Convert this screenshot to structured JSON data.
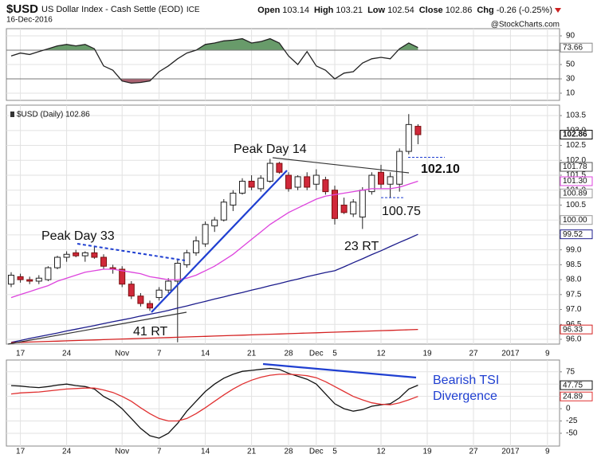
{
  "header": {
    "symbol": "$USD",
    "name": "US Dollar Index - Cash Settle (EOD)",
    "exchange": "ICE",
    "date": "16-Dec-2016",
    "quote": [
      {
        "name": "Open",
        "value": 103.14
      },
      {
        "name": "High",
        "value": 103.21
      },
      {
        "name": "Low",
        "value": 102.54
      },
      {
        "name": "Close",
        "value": 102.86
      },
      {
        "name": "Chg",
        "value": -0.26
      }
    ],
    "change_percent": {
      "value": -0.25,
      "label": "(-0.25%)"
    },
    "change_color": "#cc2222",
    "watermark": "@StockCharts.com"
  },
  "chart_data": [
    {
      "type": "line",
      "ylim": [
        0,
        100
      ],
      "yticks": [
        10,
        30,
        50,
        70,
        90
      ],
      "grid": true,
      "overbought": 70,
      "oversold": 30,
      "overbought_color": "#4e8a50",
      "oversold_color": "#9a4658",
      "series": [
        {
          "color": "#222222",
          "values": [
            62,
            66,
            64,
            68,
            72,
            76,
            78,
            76,
            78,
            72,
            48,
            42,
            27,
            24,
            25,
            27,
            40,
            48,
            58,
            66,
            70,
            78,
            80,
            83,
            84,
            86,
            80,
            82,
            86,
            80,
            62,
            50,
            68,
            48,
            42,
            30,
            38,
            40,
            52,
            58,
            60,
            58,
            72,
            80,
            73.66,
            null,
            null,
            null,
            null,
            null,
            null,
            null,
            null,
            null,
            null,
            null,
            null,
            null,
            null,
            null
          ]
        }
      ],
      "tags": [
        {
          "value": 73.66,
          "color": "#888888"
        }
      ]
    },
    {
      "type": "candlestick",
      "title": "$USD (Daily) 102.86",
      "categories": [
        null,
        "17",
        null,
        null,
        null,
        null,
        "24",
        null,
        null,
        null,
        null,
        null,
        "Nov",
        null,
        null,
        null,
        "7",
        null,
        null,
        null,
        null,
        "14",
        null,
        null,
        null,
        null,
        "21",
        null,
        null,
        null,
        "28",
        null,
        null,
        "Dec",
        null,
        "5",
        null,
        null,
        null,
        null,
        "12",
        null,
        null,
        null,
        null,
        "19",
        null,
        null,
        null,
        null,
        "27",
        null,
        null,
        null,
        "2017",
        null,
        null,
        null,
        "9",
        null
      ],
      "open": [
        97.85,
        98.1,
        98.0,
        97.95,
        98.0,
        98.4,
        98.75,
        98.9,
        98.8,
        98.9,
        98.75,
        98.4,
        98.35,
        97.85,
        97.45,
        97.2,
        97.4,
        97.65,
        97.95,
        98.5,
        98.9,
        99.2,
        99.8,
        100.0,
        100.5,
        100.9,
        101.3,
        101.05,
        101.3,
        101.9,
        101.5,
        101.1,
        101.45,
        101.2,
        101.35,
        101.0,
        100.5,
        100.2,
        100.1,
        100.95,
        101.6,
        101.2,
        101.2,
        102.3,
        103.14,
        null,
        null,
        null,
        null,
        null,
        null,
        null,
        null,
        null,
        null,
        null,
        null,
        null,
        null,
        null
      ],
      "high": [
        98.25,
        98.2,
        98.1,
        98.15,
        98.45,
        98.8,
        98.95,
        99.0,
        98.95,
        99.1,
        98.85,
        98.5,
        98.45,
        97.95,
        97.55,
        97.3,
        97.75,
        98.05,
        98.7,
        99.0,
        99.45,
        99.95,
        100.1,
        100.7,
        101.0,
        101.4,
        101.5,
        101.5,
        102.05,
        101.95,
        101.6,
        101.5,
        101.6,
        101.7,
        101.45,
        101.15,
        100.75,
        100.7,
        101.1,
        101.6,
        101.85,
        101.6,
        102.4,
        103.55,
        103.21,
        null,
        null,
        null,
        null,
        null,
        null,
        null,
        null,
        null,
        null,
        null,
        null,
        null,
        null,
        null
      ],
      "low": [
        97.75,
        97.9,
        97.85,
        97.85,
        97.95,
        98.35,
        98.6,
        98.75,
        98.6,
        98.7,
        98.35,
        98.2,
        97.75,
        97.35,
        97.1,
        96.95,
        97.3,
        97.55,
        95.9,
        98.4,
        98.8,
        99.1,
        99.6,
        99.95,
        100.3,
        100.85,
        101.0,
        100.95,
        101.25,
        101.55,
        100.95,
        101.0,
        101.0,
        101.0,
        100.85,
        99.85,
        100.2,
        100.1,
        99.7,
        100.85,
        101.05,
        100.75,
        100.95,
        102.2,
        102.54,
        null,
        null,
        null,
        null,
        null,
        null,
        null,
        null,
        null,
        null,
        null,
        null,
        null,
        null,
        null
      ],
      "close": [
        98.15,
        98.0,
        97.95,
        98.05,
        98.4,
        98.75,
        98.85,
        98.8,
        98.9,
        98.75,
        98.45,
        98.35,
        97.85,
        97.45,
        97.2,
        97.05,
        97.65,
        97.95,
        98.55,
        98.9,
        99.3,
        99.85,
        100.0,
        100.6,
        100.9,
        101.3,
        101.1,
        101.4,
        101.9,
        101.6,
        101.05,
        101.45,
        101.1,
        101.5,
        100.95,
        100.05,
        100.25,
        100.6,
        101.0,
        101.5,
        101.2,
        101.45,
        102.3,
        103.2,
        102.86,
        null,
        null,
        null,
        null,
        null,
        null,
        null,
        null,
        null,
        null,
        null,
        null,
        null,
        null,
        null
      ],
      "up_color": "#ffffff",
      "down_color": "#d0283a",
      "series": [
        {
          "color": "#dd44dd",
          "values": [
            97.4,
            97.5,
            97.6,
            97.7,
            97.8,
            97.95,
            98.05,
            98.15,
            98.25,
            98.3,
            98.35,
            98.35,
            98.3,
            98.25,
            98.2,
            98.1,
            98.05,
            98.0,
            98.0,
            98.05,
            98.15,
            98.3,
            98.45,
            98.65,
            98.85,
            99.1,
            99.35,
            99.6,
            99.85,
            100.05,
            100.25,
            100.4,
            100.55,
            100.7,
            100.8,
            100.85,
            100.9,
            100.95,
            101.0,
            101.05,
            101.05,
            101.05,
            101.1,
            101.2,
            101.3,
            null,
            null,
            null,
            null,
            null,
            null,
            null,
            null,
            null,
            null,
            null,
            null,
            null,
            null,
            null
          ]
        },
        {
          "color": "#1c1c8c",
          "values": [
            95.9,
            95.96,
            96.03,
            96.09,
            96.15,
            96.21,
            96.28,
            96.34,
            96.4,
            96.46,
            96.53,
            96.59,
            96.65,
            96.71,
            96.78,
            96.84,
            96.9,
            96.97,
            97.05,
            97.12,
            97.2,
            97.27,
            97.35,
            97.42,
            97.5,
            97.57,
            97.65,
            97.72,
            97.8,
            97.87,
            97.95,
            98.02,
            98.1,
            98.17,
            98.24,
            98.3,
            98.43,
            98.57,
            98.7,
            98.84,
            98.97,
            99.11,
            99.25,
            99.38,
            99.52,
            null,
            null,
            null,
            null,
            null,
            null,
            null,
            null,
            null,
            null,
            null,
            null,
            null,
            null,
            null
          ]
        },
        {
          "color": "#d42020",
          "values": [
            95.89,
            95.9,
            95.91,
            95.92,
            95.93,
            95.94,
            95.95,
            95.96,
            95.97,
            95.98,
            95.99,
            96,
            96.01,
            96.02,
            96.03,
            96.04,
            96.05,
            96.06,
            96.07,
            96.08,
            96.09,
            96.1,
            96.11,
            96.12,
            96.13,
            96.14,
            96.15,
            96.16,
            96.17,
            96.18,
            96.19,
            96.2,
            96.21,
            96.22,
            96.23,
            96.24,
            96.25,
            96.26,
            96.27,
            96.28,
            96.29,
            96.3,
            96.31,
            96.32,
            96.33,
            null,
            null,
            null,
            null,
            null,
            null,
            null,
            null,
            null,
            null,
            null,
            null,
            null,
            null,
            null
          ]
        }
      ],
      "ylim": [
        95.84,
        103.85
      ],
      "yticks": [
        {
          "value": 96,
          "label": "96.0"
        },
        {
          "value": 96.5,
          "label": "96.5"
        },
        {
          "value": 97,
          "label": "97.0"
        },
        {
          "value": 97.5,
          "label": "97.5"
        },
        {
          "value": 98,
          "label": "98.0"
        },
        {
          "value": 98.5,
          "label": "98.5"
        },
        {
          "value": 99,
          "label": "99.0"
        },
        {
          "value": 99.5,
          "label": "99.5"
        },
        {
          "value": 100,
          "label": "100.0"
        },
        {
          "value": 100.5,
          "label": "100.5"
        },
        {
          "value": 101,
          "label": "101.0"
        },
        {
          "value": 101.5,
          "label": "101.5"
        },
        {
          "value": 102,
          "label": "102.0"
        },
        {
          "value": 102.5,
          "label": "102.5"
        },
        {
          "value": 103,
          "label": "103.0"
        },
        {
          "value": 103.5,
          "label": "103.5"
        }
      ],
      "grid": true,
      "tags": [
        {
          "value": 102.86,
          "color": "#000000"
        },
        {
          "value": 101.78,
          "color": "#555555"
        },
        {
          "value": 101.3,
          "label": "101.30",
          "color": "#dd44dd"
        },
        {
          "value": 100.89,
          "color": "#999999"
        },
        {
          "value": 100,
          "label": "100.00",
          "color": "#999999"
        },
        {
          "value": 99.52,
          "color": "#1c1c8c"
        },
        {
          "value": 96.33,
          "color": "#d42020"
        }
      ],
      "levels": [
        {
          "value": 102.1,
          "label": "102.10",
          "color": "#111111"
        },
        {
          "value": 100.75,
          "label": "100.75",
          "color": "#d62020"
        }
      ],
      "annotations": [
        {
          "text": "Peak Day 33",
          "color": "#1f3fd1"
        },
        {
          "text": "Peak Day 14",
          "color": "#1f3fd1"
        },
        {
          "text": "41 RT",
          "color": "#1f3fd1"
        },
        {
          "text": "23 RT",
          "color": "#1f3fd1"
        }
      ]
    },
    {
      "type": "line",
      "categories": [
        null,
        "17",
        null,
        null,
        null,
        null,
        "24",
        null,
        null,
        null,
        null,
        null,
        "Nov",
        null,
        null,
        null,
        "7",
        null,
        null,
        null,
        null,
        "14",
        null,
        null,
        null,
        null,
        "21",
        null,
        null,
        null,
        "28",
        null,
        null,
        "Dec",
        null,
        "5",
        null,
        null,
        null,
        null,
        "12",
        null,
        null,
        null,
        null,
        "19",
        null,
        null,
        null,
        null,
        "27",
        null,
        null,
        null,
        "2017",
        null,
        null,
        null,
        "9",
        null
      ],
      "ylim": [
        -76,
        99
      ],
      "yticks": [
        -50,
        -25,
        0,
        25,
        50,
        75
      ],
      "grid": true,
      "series": [
        {
          "color": "#111111",
          "values": [
            47,
            46,
            44,
            43,
            45,
            48,
            50,
            47,
            45,
            40,
            25,
            15,
            0,
            -20,
            -40,
            -55,
            -60,
            -50,
            -30,
            -5,
            15,
            35,
            50,
            62,
            70,
            76,
            78,
            80,
            82,
            80,
            72,
            66,
            60,
            50,
            30,
            10,
            0,
            -5,
            -2,
            5,
            8,
            10,
            22,
            40,
            47.75,
            null,
            null,
            null,
            null,
            null,
            null,
            null,
            null,
            null,
            null,
            null,
            null,
            null,
            null,
            null
          ]
        },
        {
          "color": "#e03030",
          "values": [
            30,
            32,
            33,
            34,
            36,
            38,
            40,
            41,
            42,
            42,
            38,
            33,
            25,
            15,
            2,
            -10,
            -20,
            -25,
            -25,
            -20,
            -10,
            2,
            15,
            28,
            40,
            50,
            58,
            64,
            68,
            70,
            70,
            69,
            67,
            63,
            55,
            45,
            35,
            25,
            18,
            12,
            9,
            8,
            12,
            18,
            24.89,
            null,
            null,
            null,
            null,
            null,
            null,
            null,
            null,
            null,
            null,
            null,
            null,
            null,
            null,
            null
          ]
        }
      ],
      "tags": [
        {
          "value": 47.75,
          "color": "#111111"
        },
        {
          "value": 24.89,
          "color": "#e03030"
        }
      ],
      "annotations": [
        {
          "text": [
            "Bearish TSI",
            "Divergence"
          ],
          "color": "#1f3fd1"
        }
      ]
    }
  ]
}
